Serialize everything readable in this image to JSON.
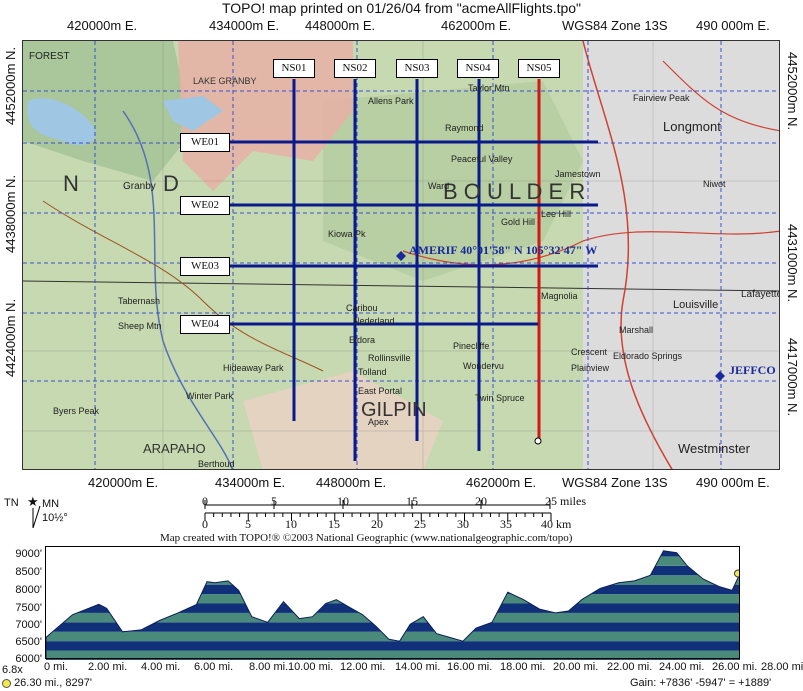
{
  "header": {
    "title": "TOPO! map printed on 01/26/04 from \"acmeAllFlights.tpo\""
  },
  "map": {
    "eastings_top": [
      "420000m E.",
      "434000m E.",
      "448000m E.",
      "462000m E.",
      "WGS84 Zone 13S",
      "490 000m E."
    ],
    "eastings_bottom": [
      "420000m E.",
      "434000m E.",
      "448000m E.",
      "462000m E.",
      "WGS84 Zone 13S",
      "490 000m E."
    ],
    "northings_left": [
      "4452000m N.",
      "4438000m N.",
      "4424000m N."
    ],
    "northings_right": [
      "4452000m N.",
      "4431000m N.",
      "4417000m N."
    ],
    "ns_lines": [
      {
        "label": "NS01",
        "color": "#0a1a8c"
      },
      {
        "label": "NS02",
        "color": "#0a1a8c"
      },
      {
        "label": "NS03",
        "color": "#0a1a8c"
      },
      {
        "label": "NS04",
        "color": "#0a1a8c"
      },
      {
        "label": "NS05",
        "color": "#d01818"
      }
    ],
    "we_lines": [
      {
        "label": "WE01"
      },
      {
        "label": "WE02"
      },
      {
        "label": "WE03"
      },
      {
        "label": "WE04"
      }
    ],
    "points": {
      "amerif": "AMERIF  40°01'58\" N 105°32'47\" W",
      "jeffco": "JEFFCO"
    },
    "places": {
      "forest": "FOREST",
      "granby": "Granby",
      "longmont": "Longmont",
      "boulder": "B O U L D E R",
      "gilpin": "GILPIN",
      "arapaho": "ARAPAHO",
      "louisville": "Louisville",
      "westminster": "Westminster",
      "nederland": "Nederland",
      "winter_park": "Winter Park",
      "eldorado": "Eldorado Springs",
      "jamestown": "Jamestown",
      "raymond": "Raymond",
      "lyons": "Allens Park",
      "tabernash": "Tabernash",
      "fraser": "Hideaway Park",
      "rollinsville": "Rollinsville",
      "marshall": "Marshall",
      "ward": "Ward",
      "gold_hill": "Gold Hill",
      "peaceful_valley": "Peaceful Valley",
      "caribou": "Caribou",
      "eldora": "Eldora",
      "east_portal": "East Portal",
      "pinecliffe": "Pinecliffe",
      "lafayette": "Lafayette",
      "niwot": "Niwot",
      "magnolia": "Magnolia",
      "twin_spruce": "Twin Spruce",
      "lake_granby": "LAKE GRANBY",
      "byers_peak": "Byers Peak",
      "berthoud": "Berthoud",
      "wondervu": "Wondervu",
      "crescent": "Crescent",
      "plainview": "Plainview",
      "tolland": "Tolland",
      "kiowa_pk": "Kiowa Pk",
      "ni": "N",
      "di": "D",
      "sheep_mtn": "Sheep Mtn",
      "lee_hill": "Lee Hill",
      "fairview_peak": "Fairview Peak",
      "taylor_mtn": "Taylor Mtn",
      "apex": "Apex"
    }
  },
  "scale": {
    "north_tn": "TN",
    "north_mn": "MN",
    "declination": "10½°",
    "miles_ticks": [
      "0",
      "5",
      "10",
      "15",
      "20",
      "25 miles"
    ],
    "km_ticks": [
      "0",
      "5",
      "10",
      "15",
      "20",
      "25",
      "30",
      "35",
      "40 km"
    ],
    "credit": "Map created with TOPO!® ©2003 National Geographic (www.nationalgeographic.com/topo)"
  },
  "profile": {
    "y_labels": [
      "9000'",
      "8500'",
      "8000'",
      "7500'",
      "7000'",
      "6500'",
      "6000'"
    ],
    "x_labels": [
      "0 mi.",
      "2.00 mi.",
      "4.00 mi.",
      "6.00 mi.",
      "8.00 mi.",
      "10.00 mi.",
      "12.00 mi.",
      "14.00 mi.",
      "16.00 mi.",
      "18.00 mi.",
      "20.00 mi.",
      "22.00 mi.",
      "24.00 mi.",
      "26.00 mi.",
      "28.00 mi."
    ],
    "zoom": "6.8x",
    "cursor_readout": "26.30 mi., 8297'",
    "gain": "Gain: +7836' -5947' = +1889'",
    "distance_mi": [
      0,
      1,
      2,
      2.3,
      2.9,
      3.6,
      4.3,
      5.0,
      5.7,
      6.1,
      6.4,
      6.9,
      7.3,
      7.8,
      8.4,
      9.0,
      9.6,
      10.1,
      10.6,
      11.0,
      11.5,
      12.0,
      12.5,
      13.0,
      13.4,
      13.8,
      14.3,
      14.8,
      15.3,
      15.8,
      16.3,
      16.9,
      17.5,
      18.1,
      18.7,
      19.3,
      19.8,
      20.3,
      21.0,
      21.7,
      22.3,
      22.9,
      23.4,
      23.9,
      24.3,
      24.9,
      25.5,
      26.0,
      26.3
    ],
    "elevation_ft": [
      6600,
      7200,
      7480,
      7370,
      6750,
      6800,
      7050,
      7250,
      7470,
      8080,
      8050,
      8100,
      7850,
      7150,
      7000,
      7550,
      7100,
      7150,
      7500,
      7600,
      7400,
      7200,
      6900,
      6550,
      6500,
      6950,
      7150,
      6700,
      6600,
      6500,
      6850,
      7000,
      7800,
      7600,
      7350,
      7250,
      7300,
      7600,
      7900,
      8050,
      8100,
      8250,
      8900,
      8850,
      8500,
      8150,
      7950,
      7850,
      8297
    ],
    "colors": {
      "bands_light": "#4a8a7a",
      "bands_dark": "#10307a",
      "cursor": "#f2e84a"
    }
  }
}
